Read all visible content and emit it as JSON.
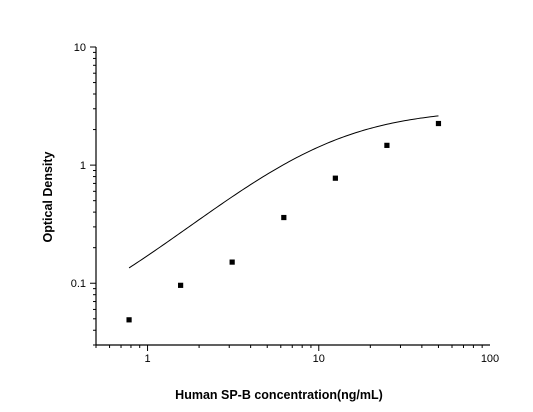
{
  "chart_data": {
    "type": "scatter",
    "xlabel": "Human SP-B concentration(ng/mL)",
    "ylabel": "Optical Density",
    "x_scale": "log",
    "y_scale": "log",
    "xlim": [
      0.5,
      100
    ],
    "ylim": [
      0.03,
      10
    ],
    "x_ticks": [
      1,
      10,
      100
    ],
    "x_tick_labels": [
      "1",
      "10",
      "100"
    ],
    "y_ticks": [
      0.1,
      1,
      10
    ],
    "y_tick_labels": [
      "0.1",
      "1",
      "10"
    ],
    "grid": false,
    "series": [
      {
        "x": [
          0.78,
          1.56,
          3.12,
          6.25,
          12.5,
          25,
          50
        ],
        "y": [
          0.049,
          0.096,
          0.151,
          0.36,
          0.775,
          1.47,
          2.25
        ]
      }
    ],
    "fit_curve": {
      "type": "4-parameter logistic",
      "bottom": 0.03,
      "top": 3.0,
      "ec50": 11.0,
      "hill": 1.25
    }
  }
}
